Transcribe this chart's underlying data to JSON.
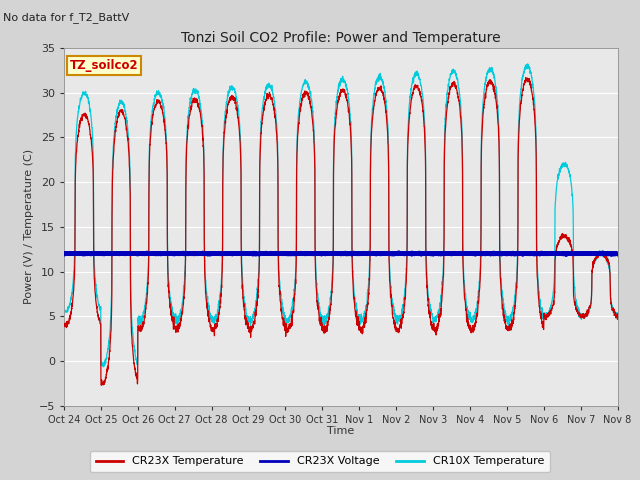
{
  "title": "Tonzi Soil CO2 Profile: Power and Temperature",
  "subtitle": "No data for f_T2_BattV",
  "ylabel": "Power (V) / Temperature (C)",
  "xlabel": "Time",
  "ylim": [
    -5,
    35
  ],
  "yticks": [
    -5,
    0,
    5,
    10,
    15,
    20,
    25,
    30,
    35
  ],
  "xtick_labels": [
    "Oct 24",
    "Oct 25",
    "Oct 26",
    "Oct 27",
    "Oct 28",
    "Oct 29",
    "Oct 30",
    "Oct 31",
    "Nov 1",
    "Nov 2",
    "Nov 3",
    "Nov 4",
    "Nov 5",
    "Nov 6",
    "Nov 7",
    "Nov 8"
  ],
  "voltage_value": 12.0,
  "cr23x_color": "#cc0000",
  "cr10x_color": "#00ccdd",
  "voltage_color": "#0000bb",
  "fig_bg_color": "#d4d4d4",
  "plot_bg_color": "#e8e8e8",
  "legend_box_facecolor": "#ffffcc",
  "legend_box_edgecolor": "#cc8800",
  "legend_label": "TZ_soilco2",
  "legend_label_color": "#cc0000",
  "num_days": 15,
  "grid_color": "#ffffff"
}
